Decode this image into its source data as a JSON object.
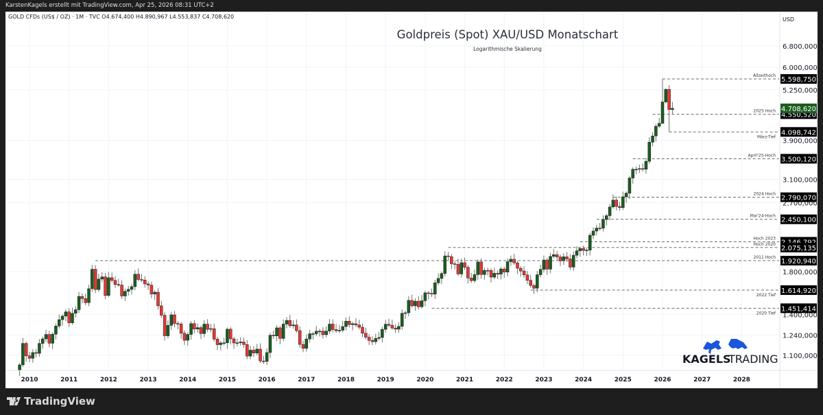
{
  "header": {
    "attribution": "KarstenKagels erstellt mit TradingView.com, Apr 25, 2026 08:31 UTC+2",
    "symbol_line": "GOLD CFDs (US$ / OZ) · 1M · TVC  O4.674,400  H4.890,967  L4.553,837  C4.708,620"
  },
  "footer": {
    "brand": "TradingView"
  },
  "logo": {
    "text_bold": "KAGELS",
    "text_light": "TRADING",
    "color": "#1a56db"
  },
  "chart_data": {
    "type": "candlestick",
    "title": "Goldpreis (Spot) XAU/USD Monatschart",
    "subtitle": "Logarithmische Skalierung",
    "ylabel": "USD",
    "scale": "log",
    "ylim": [
      1000,
      7200
    ],
    "grid": true,
    "colors": {
      "up": "#1b5e20",
      "down": "#e53935",
      "wick": "#6e6e6e",
      "last_price": "#1b5e20"
    },
    "y_ticks": [
      "6.800,000",
      "6.000,000",
      "5.250,000",
      "3.900,000",
      "3.100,000",
      "2.700,000",
      "1.800,000",
      "1.400,000",
      "1.240,000",
      "1.100,000"
    ],
    "y_tick_values": [
      6800,
      6000,
      5250,
      3900,
      3100,
      2700,
      1800,
      1400,
      1240,
      1100
    ],
    "x_ticks": [
      "2010",
      "2011",
      "2012",
      "2013",
      "2014",
      "2015",
      "2016",
      "2017",
      "2018",
      "2019",
      "2020",
      "2021",
      "2022",
      "2023",
      "2024",
      "2025",
      "2026",
      "2027",
      "2028"
    ],
    "start_month": "2009-10",
    "monthly_closes": [
      1040,
      1180,
      1097,
      1081,
      1118,
      1113,
      1180,
      1212,
      1244,
      1181,
      1246,
      1307,
      1357,
      1386,
      1421,
      1332,
      1409,
      1439,
      1556,
      1536,
      1500,
      1628,
      1826,
      1620,
      1723,
      1746,
      1565,
      1737,
      1710,
      1669,
      1664,
      1560,
      1604,
      1622,
      1648,
      1773,
      1719,
      1713,
      1675,
      1663,
      1578,
      1595,
      1472,
      1393,
      1234,
      1312,
      1396,
      1327,
      1323,
      1253,
      1202,
      1244,
      1326,
      1284,
      1295,
      1250,
      1322,
      1282,
      1287,
      1210,
      1171,
      1183,
      1184,
      1283,
      1212,
      1183,
      1184,
      1190,
      1172,
      1095,
      1134,
      1115,
      1141,
      1064,
      1061,
      1118,
      1238,
      1233,
      1293,
      1215,
      1322,
      1351,
      1309,
      1316,
      1272,
      1173,
      1146,
      1211,
      1249,
      1249,
      1268,
      1268,
      1242,
      1269,
      1322,
      1280,
      1271,
      1275,
      1303,
      1345,
      1318,
      1325,
      1315,
      1298,
      1253,
      1224,
      1201,
      1192,
      1215,
      1222,
      1282,
      1321,
      1313,
      1292,
      1283,
      1305,
      1409,
      1413,
      1520,
      1472,
      1513,
      1464,
      1517,
      1589,
      1585,
      1577,
      1686,
      1730,
      1781,
      1975,
      1967,
      1886,
      1879,
      1776,
      1898,
      1847,
      1734,
      1708,
      1769,
      1906,
      1770,
      1814,
      1813,
      1743,
      1783,
      1774,
      1829,
      1796,
      1909,
      1937,
      1896,
      1837,
      1807,
      1766,
      1711,
      1660,
      1633,
      1768,
      1824,
      1928,
      1827,
      1969,
      1990,
      1963,
      1919,
      1965,
      1940,
      1849,
      1983,
      2036,
      2063,
      2039,
      2044,
      2230,
      2286,
      2327,
      2326,
      2447,
      2503,
      2635,
      2744,
      2643,
      2625,
      2798,
      2858,
      3124,
      3289,
      3289,
      3303,
      3290,
      3448,
      3858,
      4003,
      4239,
      4310
    ],
    "recent_ohlc": [
      {
        "month": "2026-01",
        "o": 4310,
        "h": 5598.75,
        "l": 4300,
        "c": 4890
      },
      {
        "month": "2026-02",
        "o": 4890,
        "h": 5300,
        "l": 4850,
        "c": 5265
      },
      {
        "month": "2026-03",
        "o": 5265,
        "h": 5400,
        "l": 4098.742,
        "c": 4674
      },
      {
        "month": "2026-04",
        "o": 4674.4,
        "h": 4890.967,
        "l": 4553.837,
        "c": 4708.62
      }
    ],
    "last_price": "4.708,620",
    "levels": [
      {
        "label": "Allzeithoch",
        "value": 5598.75,
        "text": "5.598,750",
        "from": "2026-01",
        "below": false
      },
      {
        "label": "2025 Hoch",
        "value": 4550.52,
        "text": "4.550,520",
        "from": "2025-10",
        "below": false
      },
      {
        "label": "März-Tief",
        "value": 4098.742,
        "text": "4.098,742",
        "from": "2026-03",
        "below": true
      },
      {
        "label": "April'25-Hoch",
        "value": 3500.12,
        "text": "3.500,120",
        "from": "2025-04",
        "below": false
      },
      {
        "label": "2024 Hoch",
        "value": 2790.07,
        "text": "2.790,070",
        "from": "2024-10",
        "below": false
      },
      {
        "label": "Mai'24-Hoch",
        "value": 2450.1,
        "text": "2.450,100",
        "from": "2024-05",
        "below": false
      },
      {
        "label": "Hoch 2023",
        "value": 2146.792,
        "text": "2.146,792",
        "from": "2023-12",
        "below": false
      },
      {
        "label": "Hoch 2020",
        "value": 2075.135,
        "text": "2.075,135",
        "from": "2020-08",
        "below": false
      },
      {
        "label": "2011 Hoch",
        "value": 1920.94,
        "text": "1.920,940",
        "from": "2011-09",
        "below": false
      },
      {
        "label": "2022 Tief",
        "value": 1614.92,
        "text": "1.614,920",
        "from": "2022-09",
        "below": true
      },
      {
        "label": "2020 Tief",
        "value": 1451.414,
        "text": "1.451,414",
        "from": "2020-03",
        "below": true
      }
    ]
  }
}
